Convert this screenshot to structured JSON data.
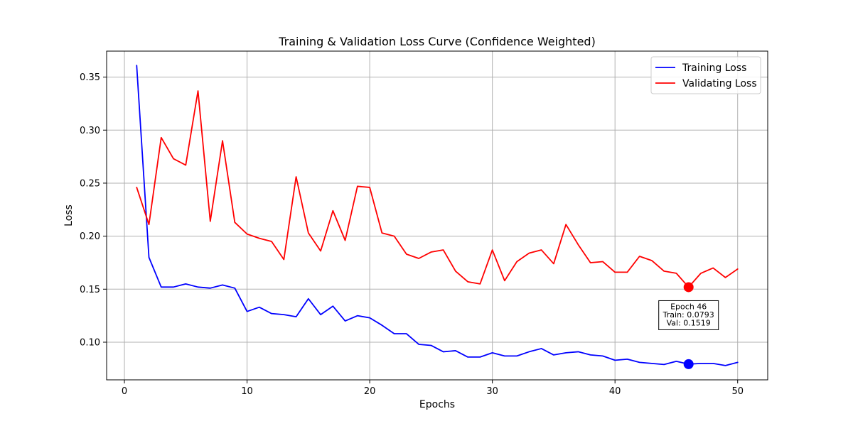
{
  "chart_data": {
    "type": "line",
    "title": "Training & Validation Loss Curve (Confidence Weighted)",
    "xlabel": "Epochs",
    "ylabel": "Loss",
    "xlim": [
      -1.45,
      52.45
    ],
    "ylim": [
      0.0645,
      0.3745
    ],
    "xticks": [
      0,
      10,
      20,
      30,
      40,
      50
    ],
    "yticks": [
      0.1,
      0.15,
      0.2,
      0.25,
      0.3,
      0.35
    ],
    "ytick_labels": [
      "0.10",
      "0.15",
      "0.20",
      "0.25",
      "0.30",
      "0.35"
    ],
    "grid": true,
    "legend_position": "top-right",
    "x": [
      1,
      2,
      3,
      4,
      5,
      6,
      7,
      8,
      9,
      10,
      11,
      12,
      13,
      14,
      15,
      16,
      17,
      18,
      19,
      20,
      21,
      22,
      23,
      24,
      25,
      26,
      27,
      28,
      29,
      30,
      31,
      32,
      33,
      34,
      35,
      36,
      37,
      38,
      39,
      40,
      41,
      42,
      43,
      44,
      45,
      46,
      47,
      48,
      49,
      50
    ],
    "series": [
      {
        "name": "Training Loss",
        "color": "#0000ff",
        "values": [
          0.361,
          0.18,
          0.152,
          0.152,
          0.155,
          0.152,
          0.151,
          0.154,
          0.151,
          0.129,
          0.133,
          0.127,
          0.126,
          0.124,
          0.141,
          0.126,
          0.134,
          0.12,
          0.125,
          0.123,
          0.116,
          0.108,
          0.108,
          0.098,
          0.097,
          0.091,
          0.092,
          0.086,
          0.086,
          0.09,
          0.087,
          0.087,
          0.091,
          0.094,
          0.088,
          0.09,
          0.091,
          0.088,
          0.087,
          0.083,
          0.084,
          0.081,
          0.08,
          0.079,
          0.082,
          0.0793,
          0.08,
          0.08,
          0.078,
          0.081
        ]
      },
      {
        "name": "Validating Loss",
        "color": "#ff0000",
        "values": [
          0.246,
          0.211,
          0.293,
          0.273,
          0.267,
          0.337,
          0.214,
          0.29,
          0.213,
          0.202,
          0.198,
          0.195,
          0.178,
          0.256,
          0.203,
          0.186,
          0.224,
          0.196,
          0.247,
          0.246,
          0.203,
          0.2,
          0.183,
          0.179,
          0.185,
          0.187,
          0.167,
          0.157,
          0.155,
          0.187,
          0.158,
          0.176,
          0.184,
          0.187,
          0.174,
          0.211,
          0.192,
          0.175,
          0.176,
          0.166,
          0.166,
          0.181,
          0.177,
          0.167,
          0.165,
          0.1519,
          0.165,
          0.17,
          0.161,
          0.169
        ]
      }
    ],
    "highlight": {
      "epoch": 46,
      "train": 0.0793,
      "val": 0.1519,
      "annotation_lines": [
        "Epoch 46",
        "Train: 0.0793",
        "Val: 0.1519"
      ]
    }
  }
}
